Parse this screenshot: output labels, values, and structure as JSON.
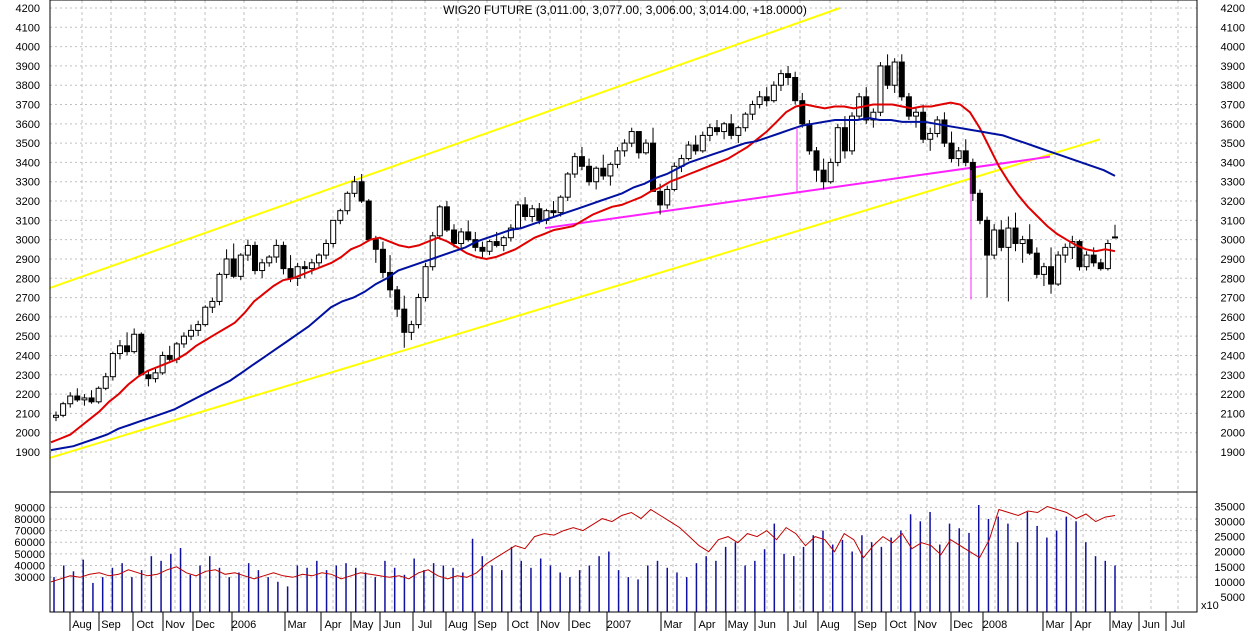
{
  "chart_data": {
    "type": "candlestick",
    "title": "WIG20 FUTURE (3,011.00, 3,077.00, 3,006.00, 3,014.00, +18.0000)",
    "price_ylim": [
      1800,
      4200
    ],
    "price_ticks": [
      "4200",
      "4100",
      "4000",
      "3900",
      "3800",
      "3700",
      "3600",
      "3500",
      "3400",
      "3300",
      "3200",
      "3100",
      "3000",
      "2900",
      "2800",
      "2700",
      "2600",
      "2500",
      "2400",
      "2300",
      "2200",
      "2100",
      "2000",
      "1900"
    ],
    "volume_left_ticks": [
      "90000",
      "80000",
      "70000",
      "60000",
      "50000",
      "40000",
      "30000"
    ],
    "volume_right_ticks": [
      "35000",
      "30000",
      "25000",
      "20000",
      "15000",
      "10000",
      "5000"
    ],
    "volume_multiplier_label": "x10",
    "month_labels": [
      "Aug",
      "Sep",
      "Oct",
      "Nov",
      "Dec",
      "2006",
      "Mar",
      "Apr",
      "May",
      "Jun",
      "Jul",
      "Aug",
      "Sep",
      "Oct",
      "Nov",
      "Dec",
      "2007",
      "Mar",
      "Apr",
      "May",
      "Jun",
      "Jul",
      "Aug",
      "Sep",
      "Oct",
      "Nov",
      "Dec",
      "2008",
      "Mar",
      "Apr",
      "May",
      "Jun",
      "Jul"
    ],
    "grid": true,
    "colors": {
      "ma_short": "#e00000",
      "ma_long": "#0010a0",
      "channel": "#ffff00",
      "trendline": "#ff20ff",
      "volume_bars": "#1010a0",
      "volume_line": "#c00000",
      "grid": "#c0c0c0"
    },
    "candles_ohlc": [
      [
        2080,
        2110,
        2060,
        2090
      ],
      [
        2090,
        2160,
        2080,
        2150
      ],
      [
        2150,
        2210,
        2130,
        2190
      ],
      [
        2190,
        2230,
        2160,
        2170
      ],
      [
        2170,
        2200,
        2140,
        2180
      ],
      [
        2180,
        2220,
        2150,
        2160
      ],
      [
        2160,
        2240,
        2150,
        2230
      ],
      [
        2230,
        2310,
        2220,
        2290
      ],
      [
        2290,
        2420,
        2270,
        2410
      ],
      [
        2410,
        2480,
        2380,
        2450
      ],
      [
        2450,
        2520,
        2400,
        2420
      ],
      [
        2420,
        2540,
        2410,
        2510
      ],
      [
        2510,
        2520,
        2380,
        2300
      ],
      [
        2300,
        2320,
        2240,
        2280
      ],
      [
        2280,
        2330,
        2260,
        2310
      ],
      [
        2310,
        2420,
        2300,
        2400
      ],
      [
        2400,
        2450,
        2370,
        2380
      ],
      [
        2380,
        2470,
        2360,
        2460
      ],
      [
        2460,
        2520,
        2440,
        2500
      ],
      [
        2500,
        2560,
        2480,
        2530
      ],
      [
        2530,
        2580,
        2500,
        2560
      ],
      [
        2560,
        2660,
        2550,
        2650
      ],
      [
        2650,
        2700,
        2620,
        2680
      ],
      [
        2680,
        2830,
        2660,
        2820
      ],
      [
        2820,
        2950,
        2800,
        2900
      ],
      [
        2900,
        2980,
        2800,
        2810
      ],
      [
        2810,
        2930,
        2790,
        2920
      ],
      [
        2920,
        3000,
        2890,
        2970
      ],
      [
        2970,
        2990,
        2820,
        2840
      ],
      [
        2840,
        2900,
        2800,
        2880
      ],
      [
        2880,
        2920,
        2860,
        2910
      ],
      [
        2910,
        3000,
        2880,
        2970
      ],
      [
        2970,
        2990,
        2820,
        2850
      ],
      [
        2850,
        2920,
        2780,
        2800
      ],
      [
        2800,
        2880,
        2760,
        2860
      ],
      [
        2860,
        2890,
        2800,
        2850
      ],
      [
        2850,
        2900,
        2820,
        2880
      ],
      [
        2880,
        2930,
        2860,
        2920
      ],
      [
        2920,
        3000,
        2900,
        2980
      ],
      [
        2980,
        3100,
        2960,
        3100
      ],
      [
        3100,
        3160,
        3080,
        3150
      ],
      [
        3150,
        3250,
        3130,
        3240
      ],
      [
        3240,
        3330,
        3220,
        3300
      ],
      [
        3300,
        3340,
        3190,
        3200
      ],
      [
        3200,
        3210,
        2990,
        3000
      ],
      [
        3000,
        3020,
        2880,
        2950
      ],
      [
        2950,
        2990,
        2800,
        2830
      ],
      [
        2830,
        2920,
        2700,
        2740
      ],
      [
        2740,
        2760,
        2600,
        2640
      ],
      [
        2640,
        2710,
        2440,
        2520
      ],
      [
        2520,
        2580,
        2480,
        2560
      ],
      [
        2560,
        2720,
        2540,
        2700
      ],
      [
        2700,
        2880,
        2680,
        2860
      ],
      [
        2860,
        3040,
        2840,
        3020
      ],
      [
        3020,
        3180,
        3000,
        3170
      ],
      [
        3170,
        3200,
        3040,
        3050
      ],
      [
        3050,
        3080,
        2960,
        2980
      ],
      [
        2980,
        3060,
        2950,
        3040
      ],
      [
        3040,
        3100,
        2990,
        3000
      ],
      [
        3000,
        3040,
        2940,
        2960
      ],
      [
        2960,
        2990,
        2900,
        2940
      ],
      [
        2940,
        3000,
        2920,
        2990
      ],
      [
        2990,
        3040,
        2960,
        2970
      ],
      [
        2970,
        3020,
        2940,
        3010
      ],
      [
        3010,
        3080,
        2990,
        3060
      ],
      [
        3060,
        3200,
        3050,
        3180
      ],
      [
        3180,
        3220,
        3100,
        3120
      ],
      [
        3120,
        3180,
        3090,
        3160
      ],
      [
        3160,
        3190,
        3080,
        3100
      ],
      [
        3100,
        3160,
        3080,
        3150
      ],
      [
        3150,
        3200,
        3120,
        3140
      ],
      [
        3140,
        3230,
        3120,
        3220
      ],
      [
        3220,
        3350,
        3200,
        3340
      ],
      [
        3340,
        3450,
        3320,
        3430
      ],
      [
        3430,
        3480,
        3360,
        3380
      ],
      [
        3380,
        3420,
        3280,
        3300
      ],
      [
        3300,
        3380,
        3260,
        3370
      ],
      [
        3370,
        3440,
        3310,
        3330
      ],
      [
        3330,
        3400,
        3280,
        3390
      ],
      [
        3390,
        3480,
        3370,
        3460
      ],
      [
        3460,
        3520,
        3430,
        3500
      ],
      [
        3500,
        3580,
        3480,
        3560
      ],
      [
        3560,
        3560,
        3420,
        3450
      ],
      [
        3450,
        3520,
        3440,
        3500
      ],
      [
        3500,
        3580,
        3380,
        3250
      ],
      [
        3250,
        3290,
        3130,
        3180
      ],
      [
        3180,
        3280,
        3160,
        3260
      ],
      [
        3260,
        3400,
        3250,
        3380
      ],
      [
        3380,
        3440,
        3350,
        3420
      ],
      [
        3420,
        3510,
        3410,
        3490
      ],
      [
        3490,
        3540,
        3440,
        3460
      ],
      [
        3460,
        3560,
        3450,
        3540
      ],
      [
        3540,
        3600,
        3510,
        3580
      ],
      [
        3580,
        3620,
        3540,
        3560
      ],
      [
        3560,
        3610,
        3520,
        3600
      ],
      [
        3600,
        3650,
        3520,
        3540
      ],
      [
        3540,
        3590,
        3500,
        3580
      ],
      [
        3580,
        3660,
        3560,
        3650
      ],
      [
        3650,
        3720,
        3620,
        3700
      ],
      [
        3700,
        3770,
        3680,
        3740
      ],
      [
        3740,
        3790,
        3690,
        3720
      ],
      [
        3720,
        3820,
        3710,
        3800
      ],
      [
        3800,
        3880,
        3770,
        3860
      ],
      [
        3860,
        3900,
        3800,
        3840
      ],
      [
        3840,
        3870,
        3700,
        3720
      ],
      [
        3720,
        3760,
        3580,
        3600
      ],
      [
        3600,
        3620,
        3440,
        3460
      ],
      [
        3460,
        3480,
        3300,
        3360
      ],
      [
        3360,
        3420,
        3260,
        3300
      ],
      [
        3300,
        3420,
        3290,
        3400
      ],
      [
        3400,
        3600,
        3380,
        3580
      ],
      [
        3580,
        3640,
        3420,
        3460
      ],
      [
        3460,
        3660,
        3440,
        3640
      ],
      [
        3640,
        3760,
        3620,
        3740
      ],
      [
        3740,
        3790,
        3600,
        3620
      ],
      [
        3620,
        3680,
        3580,
        3660
      ],
      [
        3660,
        3920,
        3640,
        3900
      ],
      [
        3900,
        3960,
        3780,
        3800
      ],
      [
        3800,
        3940,
        3760,
        3920
      ],
      [
        3920,
        3960,
        3720,
        3740
      ],
      [
        3740,
        3760,
        3620,
        3640
      ],
      [
        3640,
        3680,
        3580,
        3660
      ],
      [
        3660,
        3700,
        3500,
        3520
      ],
      [
        3520,
        3580,
        3460,
        3550
      ],
      [
        3550,
        3640,
        3530,
        3620
      ],
      [
        3620,
        3660,
        3480,
        3500
      ],
      [
        3500,
        3560,
        3400,
        3420
      ],
      [
        3420,
        3480,
        3380,
        3460
      ],
      [
        3460,
        3520,
        3380,
        3400
      ],
      [
        3400,
        3420,
        3200,
        3240
      ],
      [
        3240,
        3260,
        3080,
        3100
      ],
      [
        3100,
        3120,
        2700,
        2920
      ],
      [
        2920,
        3080,
        2900,
        3050
      ],
      [
        3050,
        3100,
        2940,
        2960
      ],
      [
        2960,
        3120,
        2680,
        3060
      ],
      [
        3060,
        3140,
        2940,
        2980
      ],
      [
        2980,
        3020,
        2880,
        3000
      ],
      [
        3000,
        3080,
        2920,
        2930
      ],
      [
        2930,
        2960,
        2800,
        2820
      ],
      [
        2820,
        2880,
        2760,
        2860
      ],
      [
        2860,
        2960,
        2720,
        2770
      ],
      [
        2770,
        2940,
        2760,
        2920
      ],
      [
        2920,
        2980,
        2880,
        2960
      ],
      [
        2960,
        3020,
        2900,
        2990
      ],
      [
        2990,
        3000,
        2840,
        2860
      ],
      [
        2860,
        2940,
        2840,
        2920
      ],
      [
        2920,
        2960,
        2860,
        2880
      ],
      [
        2880,
        2900,
        2840,
        2850
      ],
      [
        2850,
        3000,
        2840,
        2980
      ],
      [
        3011,
        3077,
        3006,
        3014
      ]
    ],
    "ma_short": [
      1950,
      1970,
      1990,
      2030,
      2070,
      2110,
      2160,
      2200,
      2250,
      2290,
      2320,
      2340,
      2360,
      2380,
      2410,
      2450,
      2480,
      2510,
      2540,
      2570,
      2620,
      2680,
      2720,
      2760,
      2790,
      2800,
      2820,
      2840,
      2860,
      2880,
      2910,
      2950,
      2970,
      3000,
      3010,
      2990,
      2970,
      2960,
      2970,
      2990,
      3010,
      2990,
      2960,
      2930,
      2910,
      2900,
      2910,
      2930,
      2950,
      2980,
      3010,
      3030,
      3050,
      3060,
      3070,
      3100,
      3130,
      3150,
      3170,
      3180,
      3200,
      3220,
      3250,
      3270,
      3300,
      3320,
      3340,
      3360,
      3380,
      3400,
      3420,
      3450,
      3480,
      3520,
      3560,
      3610,
      3660,
      3690,
      3700,
      3690,
      3680,
      3690,
      3690,
      3680,
      3690,
      3700,
      3700,
      3700,
      3690,
      3680,
      3690,
      3690,
      3700,
      3710,
      3700,
      3660,
      3580,
      3480,
      3380,
      3300,
      3230,
      3170,
      3120,
      3070,
      3030,
      3000,
      2970,
      2950,
      2940,
      2950,
      2940
    ],
    "ma_long": [
      1910,
      1920,
      1930,
      1950,
      1970,
      1990,
      2020,
      2040,
      2060,
      2080,
      2100,
      2120,
      2150,
      2180,
      2210,
      2240,
      2270,
      2310,
      2350,
      2390,
      2430,
      2470,
      2510,
      2550,
      2600,
      2650,
      2680,
      2700,
      2730,
      2770,
      2800,
      2840,
      2860,
      2880,
      2900,
      2920,
      2940,
      2960,
      2990,
      3010,
      3030,
      3050,
      3060,
      3080,
      3100,
      3120,
      3140,
      3160,
      3180,
      3200,
      3220,
      3240,
      3270,
      3290,
      3320,
      3340,
      3370,
      3400,
      3420,
      3440,
      3460,
      3480,
      3500,
      3510,
      3530,
      3550,
      3570,
      3590,
      3600,
      3610,
      3620,
      3620,
      3620,
      3630,
      3620,
      3620,
      3610,
      3610,
      3610,
      3600,
      3590,
      3580,
      3570,
      3560,
      3550,
      3540,
      3520,
      3500,
      3480,
      3460,
      3440,
      3420,
      3400,
      3380,
      3360,
      3330
    ],
    "channel_upper": [
      [
        0,
        2750
      ],
      [
        800,
        3900
      ]
    ],
    "channel_lower": [
      [
        0,
        1870
      ],
      [
        1050,
        3520
      ]
    ],
    "trendline_neckline": [
      [
        545,
        3060
      ],
      [
        1050,
        3430
      ]
    ],
    "volume": [
      30000,
      40000,
      35000,
      45000,
      25000,
      30000,
      38000,
      42000,
      30000,
      36000,
      48000,
      44000,
      50000,
      55000,
      32000,
      40000,
      48000,
      38000,
      30000,
      34000,
      42000,
      36000,
      30000,
      26000,
      22000,
      40000,
      38000,
      44000,
      36000,
      40000,
      42000,
      38000,
      34000,
      30000,
      44000,
      38000,
      32000,
      46000,
      36000,
      42000,
      40000,
      38000,
      34000,
      63000,
      48000,
      40000,
      36000,
      56000,
      44000,
      38000,
      46000,
      40000,
      34000,
      30000,
      36000,
      40000,
      48000,
      52000,
      36000,
      30000,
      28000,
      40000,
      44000,
      38000,
      34000,
      30000,
      42000,
      48000,
      44000,
      56000,
      60000,
      40000,
      44000,
      54000,
      76000,
      50000,
      48000,
      56000,
      66000,
      70000,
      58000,
      62000,
      52000,
      66000,
      60000,
      56000,
      64000,
      70000,
      84000,
      78000,
      86000,
      58000,
      76000,
      72000,
      68000,
      92000,
      80000,
      82000,
      76000,
      60000,
      86000,
      74000,
      64000,
      70000,
      82000,
      78000,
      60000,
      48000,
      44000,
      40000
    ],
    "volume_oscillator": [
      10000,
      11000,
      12000,
      11500,
      12500,
      13000,
      12000,
      12500,
      14000,
      13000,
      12000,
      12500,
      14000,
      15000,
      13000,
      12000,
      13500,
      14000,
      12500,
      13000,
      12000,
      11000,
      12000,
      13000,
      12000,
      11500,
      12500,
      12000,
      13000,
      12500,
      11000,
      12000,
      13000,
      12500,
      12000,
      11500,
      12000,
      11000,
      13000,
      14000,
      12000,
      11000,
      12000,
      11500,
      13000,
      16000,
      18000,
      20000,
      22000,
      21000,
      25000,
      26000,
      25500,
      27000,
      28000,
      27000,
      29000,
      31000,
      30000,
      32000,
      33000,
      31000,
      34000,
      32000,
      30000,
      28000,
      25000,
      22000,
      20000,
      24000,
      25000,
      23000,
      26000,
      25000,
      27000,
      24000,
      28000,
      26000,
      22000,
      25000,
      24000,
      20000,
      26000,
      24000,
      18000,
      22000,
      25000,
      23000,
      26000,
      21000,
      23000,
      22000,
      19000,
      24000,
      22000,
      20000,
      18000,
      24000,
      34000,
      33000,
      32000,
      33500,
      33000,
      35000,
      34000,
      33000,
      31000,
      32500,
      30000,
      31500,
      32000
    ]
  }
}
